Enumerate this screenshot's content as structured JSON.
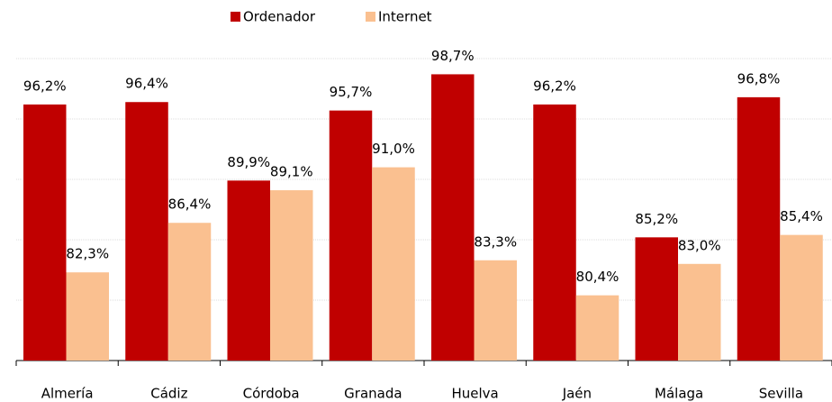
{
  "chart_data": {
    "type": "bar",
    "categories": [
      "Almería",
      "Cádiz",
      "Córdoba",
      "Granada",
      "Huelva",
      "Jaén",
      "Málaga",
      "Sevilla"
    ],
    "series": [
      {
        "name": "Ordenador",
        "color": "#c00000",
        "values": [
          96.2,
          96.4,
          89.9,
          95.7,
          98.7,
          96.2,
          85.2,
          96.8
        ],
        "value_labels": [
          "96,2%",
          "96,4%",
          "89,9%",
          "95,7%",
          "98,7%",
          "96,2%",
          "85,2%",
          "96,8%"
        ]
      },
      {
        "name": "Internet",
        "color": "#fac090",
        "values": [
          82.3,
          86.4,
          89.1,
          91.0,
          83.3,
          80.4,
          83.0,
          85.4
        ],
        "value_labels": [
          "82,3%",
          "86,4%",
          "89,1%",
          "91,0%",
          "83,3%",
          "80,4%",
          "83,0%",
          "85,4%"
        ]
      }
    ],
    "ylim": [
      75,
      100
    ],
    "yticks": [
      75,
      80,
      85,
      90,
      95,
      100
    ],
    "grid": true,
    "legend": "top"
  }
}
